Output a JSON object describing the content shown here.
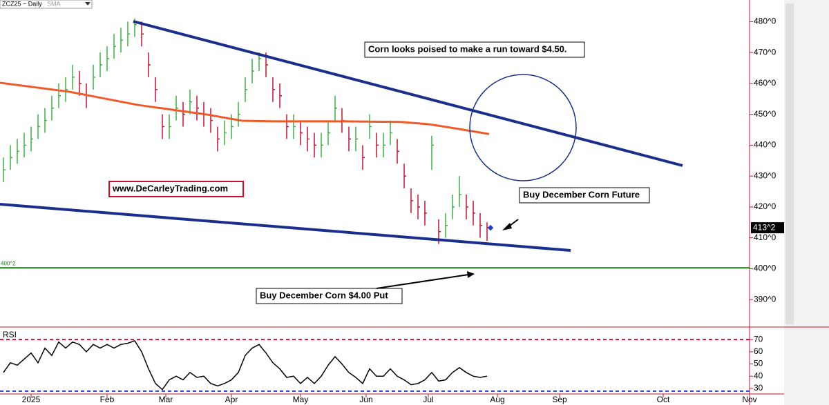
{
  "chart_data": {
    "type": "ohlc",
    "title": "ZCZ25 ~ Daily",
    "sma_label": "SMA",
    "x": [
      1,
      3,
      5,
      7,
      9,
      11,
      13,
      15,
      17,
      19,
      21,
      23,
      25,
      27,
      29,
      31,
      33,
      35,
      37,
      39,
      41,
      43,
      45,
      47,
      49,
      51,
      53,
      55,
      57,
      59,
      61,
      63,
      65,
      67,
      69,
      71,
      73,
      75,
      77,
      79,
      81,
      83,
      85,
      87,
      89,
      91,
      93,
      95,
      97,
      99,
      101,
      103,
      105,
      107,
      109,
      111,
      113,
      115,
      117,
      119,
      121,
      123,
      125,
      127,
      129,
      131,
      133,
      135,
      137,
      139,
      141
    ],
    "high": [
      436,
      440,
      442,
      444,
      446,
      450,
      452,
      456,
      460,
      462,
      466,
      464,
      460,
      466,
      470,
      472,
      476,
      478,
      480,
      481,
      480,
      470,
      462,
      450,
      450,
      456,
      454,
      458,
      456,
      454,
      452,
      446,
      448,
      450,
      454,
      462,
      468,
      470,
      470,
      462,
      460,
      450,
      450,
      448,
      446,
      444,
      444,
      448,
      456,
      452,
      446,
      446,
      440,
      450,
      444,
      444,
      448,
      442,
      434,
      426,
      424,
      422,
      443,
      416,
      418,
      424,
      430,
      424,
      422,
      418,
      415
    ],
    "low": [
      428,
      432,
      434,
      436,
      438,
      442,
      444,
      448,
      452,
      454,
      458,
      456,
      452,
      458,
      462,
      464,
      468,
      470,
      472,
      475,
      472,
      462,
      454,
      442,
      442,
      448,
      446,
      450,
      448,
      446,
      444,
      438,
      440,
      442,
      446,
      454,
      460,
      464,
      462,
      454,
      452,
      442,
      442,
      440,
      438,
      436,
      436,
      440,
      448,
      444,
      438,
      438,
      432,
      442,
      436,
      436,
      440,
      434,
      426,
      418,
      416,
      414,
      432,
      408,
      410,
      416,
      420,
      416,
      414,
      410,
      409
    ],
    "close": [
      432,
      436,
      438,
      440,
      442,
      446,
      448,
      452,
      456,
      458,
      462,
      460,
      456,
      462,
      466,
      468,
      472,
      474,
      476,
      479,
      476,
      466,
      458,
      446,
      446,
      452,
      450,
      454,
      452,
      450,
      448,
      442,
      444,
      446,
      450,
      458,
      464,
      468,
      466,
      458,
      456,
      446,
      446,
      444,
      442,
      440,
      440,
      444,
      452,
      448,
      442,
      442,
      436,
      446,
      440,
      440,
      444,
      438,
      430,
      422,
      420,
      418,
      440,
      412,
      414,
      420,
      424,
      420,
      418,
      414,
      413.25
    ],
    "sma": {
      "color": "#f05a28",
      "x": [
        0,
        20,
        40,
        60,
        70,
        80,
        100,
        116,
        124,
        132,
        141.6
      ],
      "values": [
        460.2,
        457.3,
        453,
        449.9,
        447.9,
        447.7,
        447.7,
        447.5,
        446.8,
        445.4,
        443.6
      ]
    },
    "up_color": "#3cb043",
    "down_color": "#c8102e",
    "xlim": [
      0,
      217
    ],
    "ylim": [
      382,
      487
    ],
    "xticks": [
      {
        "value": 9,
        "label": "2025"
      },
      {
        "value": 31,
        "label": "Feb"
      },
      {
        "value": 48,
        "label": "Mar"
      },
      {
        "value": 67,
        "label": "Apr"
      },
      {
        "value": 87,
        "label": "May"
      },
      {
        "value": 106,
        "label": "Jun"
      },
      {
        "value": 124,
        "label": "Jul"
      },
      {
        "value": 144,
        "label": "Aug"
      },
      {
        "value": 162,
        "label": "Sep"
      },
      {
        "value": 192,
        "label": "Oct"
      },
      {
        "value": 217,
        "label": "Nov"
      }
    ],
    "yticks": [
      {
        "value": 390,
        "label": "390^0"
      },
      {
        "value": 400,
        "label": "400^0"
      },
      {
        "value": 410,
        "label": "410^0"
      },
      {
        "value": 420,
        "label": "420^0"
      },
      {
        "value": 430,
        "label": "430^0"
      },
      {
        "value": 440,
        "label": "440^0"
      },
      {
        "value": 450,
        "label": "450^0"
      },
      {
        "value": 460,
        "label": "460^0"
      },
      {
        "value": 470,
        "label": "470^0"
      },
      {
        "value": 480,
        "label": "480^0"
      }
    ],
    "last_price": {
      "value": 413.25,
      "label": "413^2"
    },
    "level_line": {
      "value": 400.25,
      "label": "400^2",
      "color": "#1a7a1a"
    },
    "annotations": [
      "Corn looks poised to make a run toward $4.50.",
      "www.DeCarleyTrading.com",
      "Buy December Corn Future",
      "Buy December Corn $4.00 Put"
    ],
    "rsi": {
      "label": "RSI",
      "values": [
        43,
        51,
        49,
        54,
        59,
        51,
        63,
        57,
        68,
        63,
        68,
        66,
        60,
        66,
        63,
        66,
        63,
        66,
        67,
        69,
        60,
        46,
        34,
        29,
        37,
        40,
        37,
        43,
        39,
        40,
        34,
        32,
        34,
        37,
        43,
        57,
        63,
        66,
        59,
        51,
        46,
        39,
        40,
        34,
        39,
        34,
        40,
        49,
        56,
        50,
        43,
        39,
        34,
        46,
        40,
        40,
        46,
        40,
        37,
        33,
        34,
        37,
        43,
        36,
        37,
        43,
        47,
        43,
        40,
        39,
        40
      ],
      "ylim": [
        26,
        78
      ],
      "yticks": [
        30,
        40,
        50,
        60,
        70
      ]
    }
  }
}
